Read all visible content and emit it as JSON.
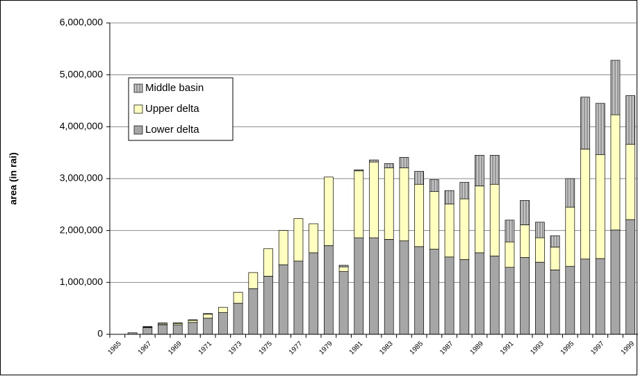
{
  "chart_data": {
    "type": "stacked-bar",
    "y_label": "area (in rai)",
    "categories": [
      "1965",
      null,
      "1967",
      null,
      "1969",
      null,
      "1971",
      null,
      "1973",
      null,
      "1975",
      null,
      "1977",
      null,
      "1979",
      null,
      "1981",
      null,
      "1983",
      null,
      "1985",
      null,
      "1987",
      null,
      "1989",
      null,
      "1991",
      null,
      "1993",
      null,
      "1995",
      null,
      "1997",
      null,
      "1999"
    ],
    "series": [
      {
        "name": "Lower delta",
        "color": "#a6a6a6",
        "values": [
          0,
          30000,
          130000,
          180000,
          180000,
          230000,
          310000,
          420000,
          600000,
          880000,
          1120000,
          1340000,
          1410000,
          1570000,
          1710000,
          1210000,
          1860000,
          1860000,
          1830000,
          1800000,
          1690000,
          1640000,
          1490000,
          1440000,
          1570000,
          1510000,
          1290000,
          1480000,
          1390000,
          1240000,
          1310000,
          1450000,
          1460000,
          2010000,
          2210000
        ]
      },
      {
        "name": "Upper delta",
        "color": "#ffffc0",
        "values": [
          0,
          0,
          10000,
          20000,
          30000,
          40000,
          80000,
          100000,
          210000,
          310000,
          530000,
          660000,
          820000,
          560000,
          1320000,
          90000,
          1290000,
          1460000,
          1380000,
          1410000,
          1200000,
          1110000,
          1020000,
          1170000,
          1290000,
          1380000,
          490000,
          630000,
          470000,
          440000,
          1140000,
          2120000,
          2000000,
          2220000,
          1450000
        ]
      },
      {
        "name": "Middle basin",
        "color": "#c4c4c4",
        "pattern": "vertical-lines",
        "values": [
          0,
          0,
          10000,
          20000,
          10000,
          10000,
          10000,
          0,
          0,
          0,
          0,
          0,
          0,
          0,
          0,
          30000,
          20000,
          40000,
          80000,
          200000,
          250000,
          230000,
          260000,
          320000,
          590000,
          560000,
          420000,
          470000,
          300000,
          220000,
          550000,
          1000000,
          990000,
          1050000,
          940000
        ]
      }
    ],
    "ylim": [
      0,
      6000000
    ],
    "yticks": [
      0,
      {
        "value": 1000000,
        "label": "1,000,000"
      },
      {
        "value": 2000000,
        "label": "2,000,000"
      },
      {
        "value": 3000000,
        "label": "3,000,000"
      },
      {
        "value": 4000000,
        "label": "4,000,000"
      },
      {
        "value": 5000000,
        "label": "5,000,000"
      },
      {
        "value": 6000000,
        "label": "6,000,000"
      }
    ],
    "grid": true,
    "legend": "upper-left"
  }
}
